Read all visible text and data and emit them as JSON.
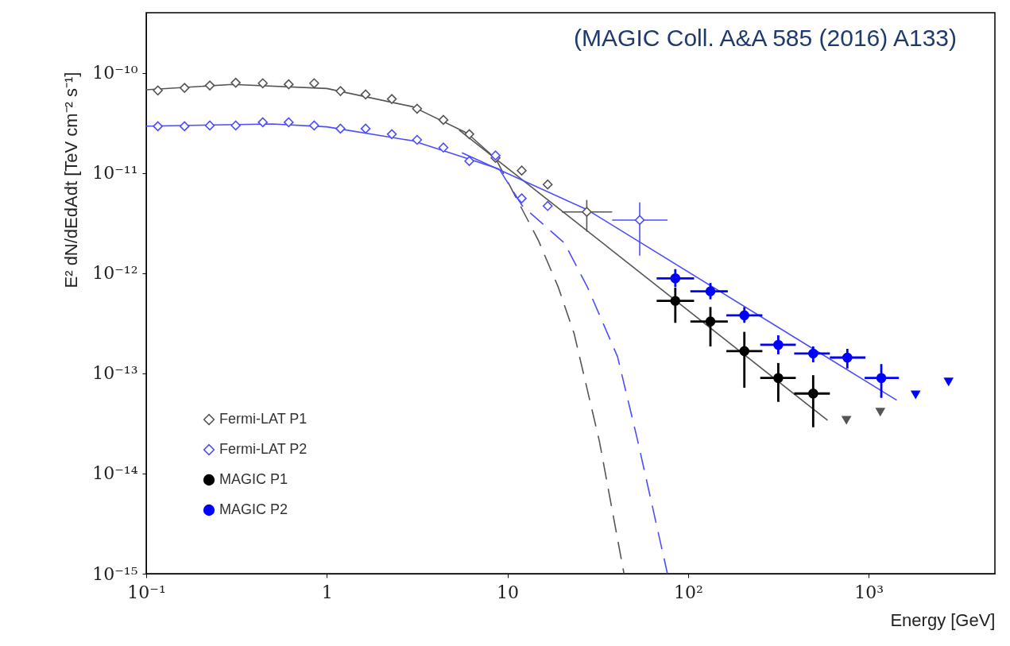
{
  "chart_data": {
    "type": "scatter",
    "xlabel": "Energy [GeV]",
    "ylabel": "E² dN/dEdAdt [TeV cm⁻² s⁻¹]",
    "annotations": [
      "(MAGIC Coll. A&A 585 (2016) A133)"
    ],
    "log": "xy",
    "xlim": [
      0.1,
      5000
    ],
    "ylim": [
      1e-15,
      4e-10
    ],
    "xticks": [
      {
        "value": 0.1,
        "label": "10⁻¹"
      },
      1,
      10,
      {
        "value": 100,
        "label": "10²"
      },
      {
        "value": 1000,
        "label": "10³"
      }
    ],
    "yticks": [
      {
        "value": 1e-15,
        "label": "10⁻¹⁵"
      },
      {
        "value": 1e-14,
        "label": "10⁻¹⁴"
      },
      {
        "value": 1e-13,
        "label": "10⁻¹³"
      },
      {
        "value": 1e-12,
        "label": "10⁻¹²"
      },
      {
        "value": 1e-11,
        "label": "10⁻¹¹"
      },
      {
        "value": 1e-10,
        "label": "10⁻¹⁰"
      }
    ],
    "legend": "bottom left",
    "series": [
      {
        "type": "line",
        "color": "#555555",
        "line_style": "solid",
        "x": [
          0.1,
          0.3,
          1,
          3,
          6,
          8.6
        ],
        "values": [
          6.8e-11,
          7.7e-11,
          7e-11,
          4.6e-11,
          2.5e-11,
          1.4e-11
        ]
      },
      {
        "type": "line",
        "color": "#555555",
        "line_style": "dashed",
        "x": [
          8.6,
          14.8,
          19.1,
          23.4,
          32.3,
          44.2
        ],
        "values": [
          1.4e-11,
          2.15e-12,
          7.3e-13,
          2.5e-13,
          2.1e-14,
          1e-15
        ]
      },
      {
        "type": "line",
        "color": "#4d4dff",
        "line_style": "solid",
        "x": [
          0.1,
          0.5,
          1,
          3,
          6,
          9
        ],
        "values": [
          2.95e-11,
          3.1e-11,
          2.9e-11,
          2.1e-11,
          1.4e-11,
          1.1e-11
        ]
      },
      {
        "type": "line",
        "color": "#4d4dff",
        "line_style": "dashed",
        "x": [
          9,
          12.1,
          20.7,
          27.7,
          40.7,
          52.4,
          76.9
        ],
        "values": [
          1.1e-11,
          4.7e-12,
          2e-12,
          7.3e-13,
          1.47e-13,
          2.2e-14,
          1e-15
        ]
      },
      {
        "type": "line",
        "color": "#555555",
        "line_style": "solid",
        "x": [
          5.4,
          592
        ],
        "values": [
          2.7e-11,
          3.4e-14
        ]
      },
      {
        "type": "line",
        "color": "#4d4dff",
        "line_style": "solid",
        "x": [
          5.6,
          27.7,
          1430
        ],
        "values": [
          1.6e-11,
          4.3e-12,
          5.4e-14
        ]
      },
      {
        "type": "scatter",
        "name": "Fermi-LAT P1",
        "color": "#555555",
        "marker": "diamond",
        "x": [
          0.116,
          0.163,
          0.225,
          0.313,
          0.442,
          0.615,
          0.851,
          1.19,
          1.64,
          2.29,
          3.16,
          4.42,
          6.15,
          8.59,
          12,
          16.7,
          27.5
        ],
        "values": [
          6.7e-11,
          7.1e-11,
          7.5e-11,
          8e-11,
          7.9e-11,
          7.7e-11,
          7.9e-11,
          6.6e-11,
          6.1e-11,
          5.5e-11,
          4.4e-11,
          3.4e-11,
          2.45e-11,
          1.42e-11,
          1.06e-11,
          7.7e-12,
          4.1e-12
        ],
        "errors": [
          null,
          null,
          null,
          null,
          null,
          null,
          null,
          null,
          null,
          null,
          null,
          null,
          null,
          null,
          null,
          null,
          [
            2.6e-12,
            5.4e-12
          ]
        ],
        "xerrors": [
          null,
          null,
          null,
          null,
          null,
          null,
          null,
          null,
          null,
          null,
          null,
          null,
          null,
          null,
          null,
          null,
          [
            20,
            38
          ]
        ]
      },
      {
        "type": "scatter",
        "name": "Fermi-LAT P2",
        "color": "#4d4dff",
        "marker": "diamond",
        "x": [
          0.116,
          0.163,
          0.225,
          0.313,
          0.442,
          0.615,
          0.851,
          1.19,
          1.64,
          2.29,
          3.16,
          4.42,
          6.15,
          8.59,
          12,
          16.7,
          54
        ],
        "values": [
          2.94e-11,
          2.94e-11,
          2.99e-11,
          2.99e-11,
          3.22e-11,
          3.22e-11,
          2.99e-11,
          2.78e-11,
          2.78e-11,
          2.45e-11,
          2.15e-11,
          1.8e-11,
          1.32e-11,
          1.5e-11,
          5.6e-12,
          4.7e-12,
          3.4e-12
        ],
        "errors": [
          null,
          null,
          null,
          null,
          null,
          null,
          null,
          null,
          null,
          null,
          null,
          null,
          null,
          null,
          null,
          null,
          [
            1.5e-12,
            5.1e-12
          ]
        ],
        "xerrors": [
          null,
          null,
          null,
          null,
          null,
          null,
          null,
          null,
          null,
          null,
          null,
          null,
          null,
          null,
          null,
          null,
          [
            38,
            77
          ]
        ]
      },
      {
        "type": "scatter",
        "name": "MAGIC P1",
        "color": "#000000",
        "marker": "circle",
        "x": [
          85,
          133,
          205,
          316,
          493
        ],
        "values": [
          5.3e-13,
          3.3e-13,
          1.67e-13,
          9e-14,
          6.3e-14
        ],
        "errors": [
          [
            3.2e-13,
            7.2e-13
          ],
          [
            1.86e-13,
            4.6e-13
          ],
          [
            7.2e-14,
            2.6e-13
          ],
          [
            5.2e-14,
            1.27e-13
          ],
          [
            2.9e-14,
            9.6e-14
          ]
        ],
        "xerrors": [
          [
            67,
            108
          ],
          [
            103,
            166
          ],
          [
            163,
            258
          ],
          [
            251,
            395
          ],
          [
            387,
            610
          ]
        ]
      },
      {
        "type": "scatter",
        "name": "MAGIC P2",
        "color": "#0000ff",
        "marker": "circle",
        "x": [
          85,
          133,
          205,
          316,
          493,
          762,
          1175
        ],
        "values": [
          8.9e-13,
          6.6e-13,
          3.8e-13,
          1.93e-13,
          1.58e-13,
          1.44e-13,
          9e-14
        ],
        "errors": [
          [
            7.3e-13,
            1.1e-12
          ],
          [
            5.5e-13,
            8e-13
          ],
          [
            3.2e-13,
            4.6e-13
          ],
          [
            1.55e-13,
            2.4e-13
          ],
          [
            1.29e-13,
            1.86e-13
          ],
          [
            1.12e-13,
            1.76e-13
          ],
          [
            5.7e-14,
            1.24e-13
          ]
        ],
        "xerrors": [
          [
            67,
            108
          ],
          [
            103,
            166
          ],
          [
            163,
            258
          ],
          [
            251,
            395
          ],
          [
            387,
            610
          ],
          [
            610,
            960
          ],
          [
            950,
            1470
          ]
        ]
      },
      {
        "type": "scatter",
        "color": "#555555",
        "marker": "triangle",
        "x": [
          753,
          1160
        ],
        "values": [
          3.4e-14,
          4.1e-14
        ]
      },
      {
        "type": "scatter",
        "color": "#0000ff",
        "marker": "triangle",
        "x": [
          1820,
          2770
        ],
        "values": [
          6.1e-14,
          8.2e-14
        ]
      }
    ]
  }
}
